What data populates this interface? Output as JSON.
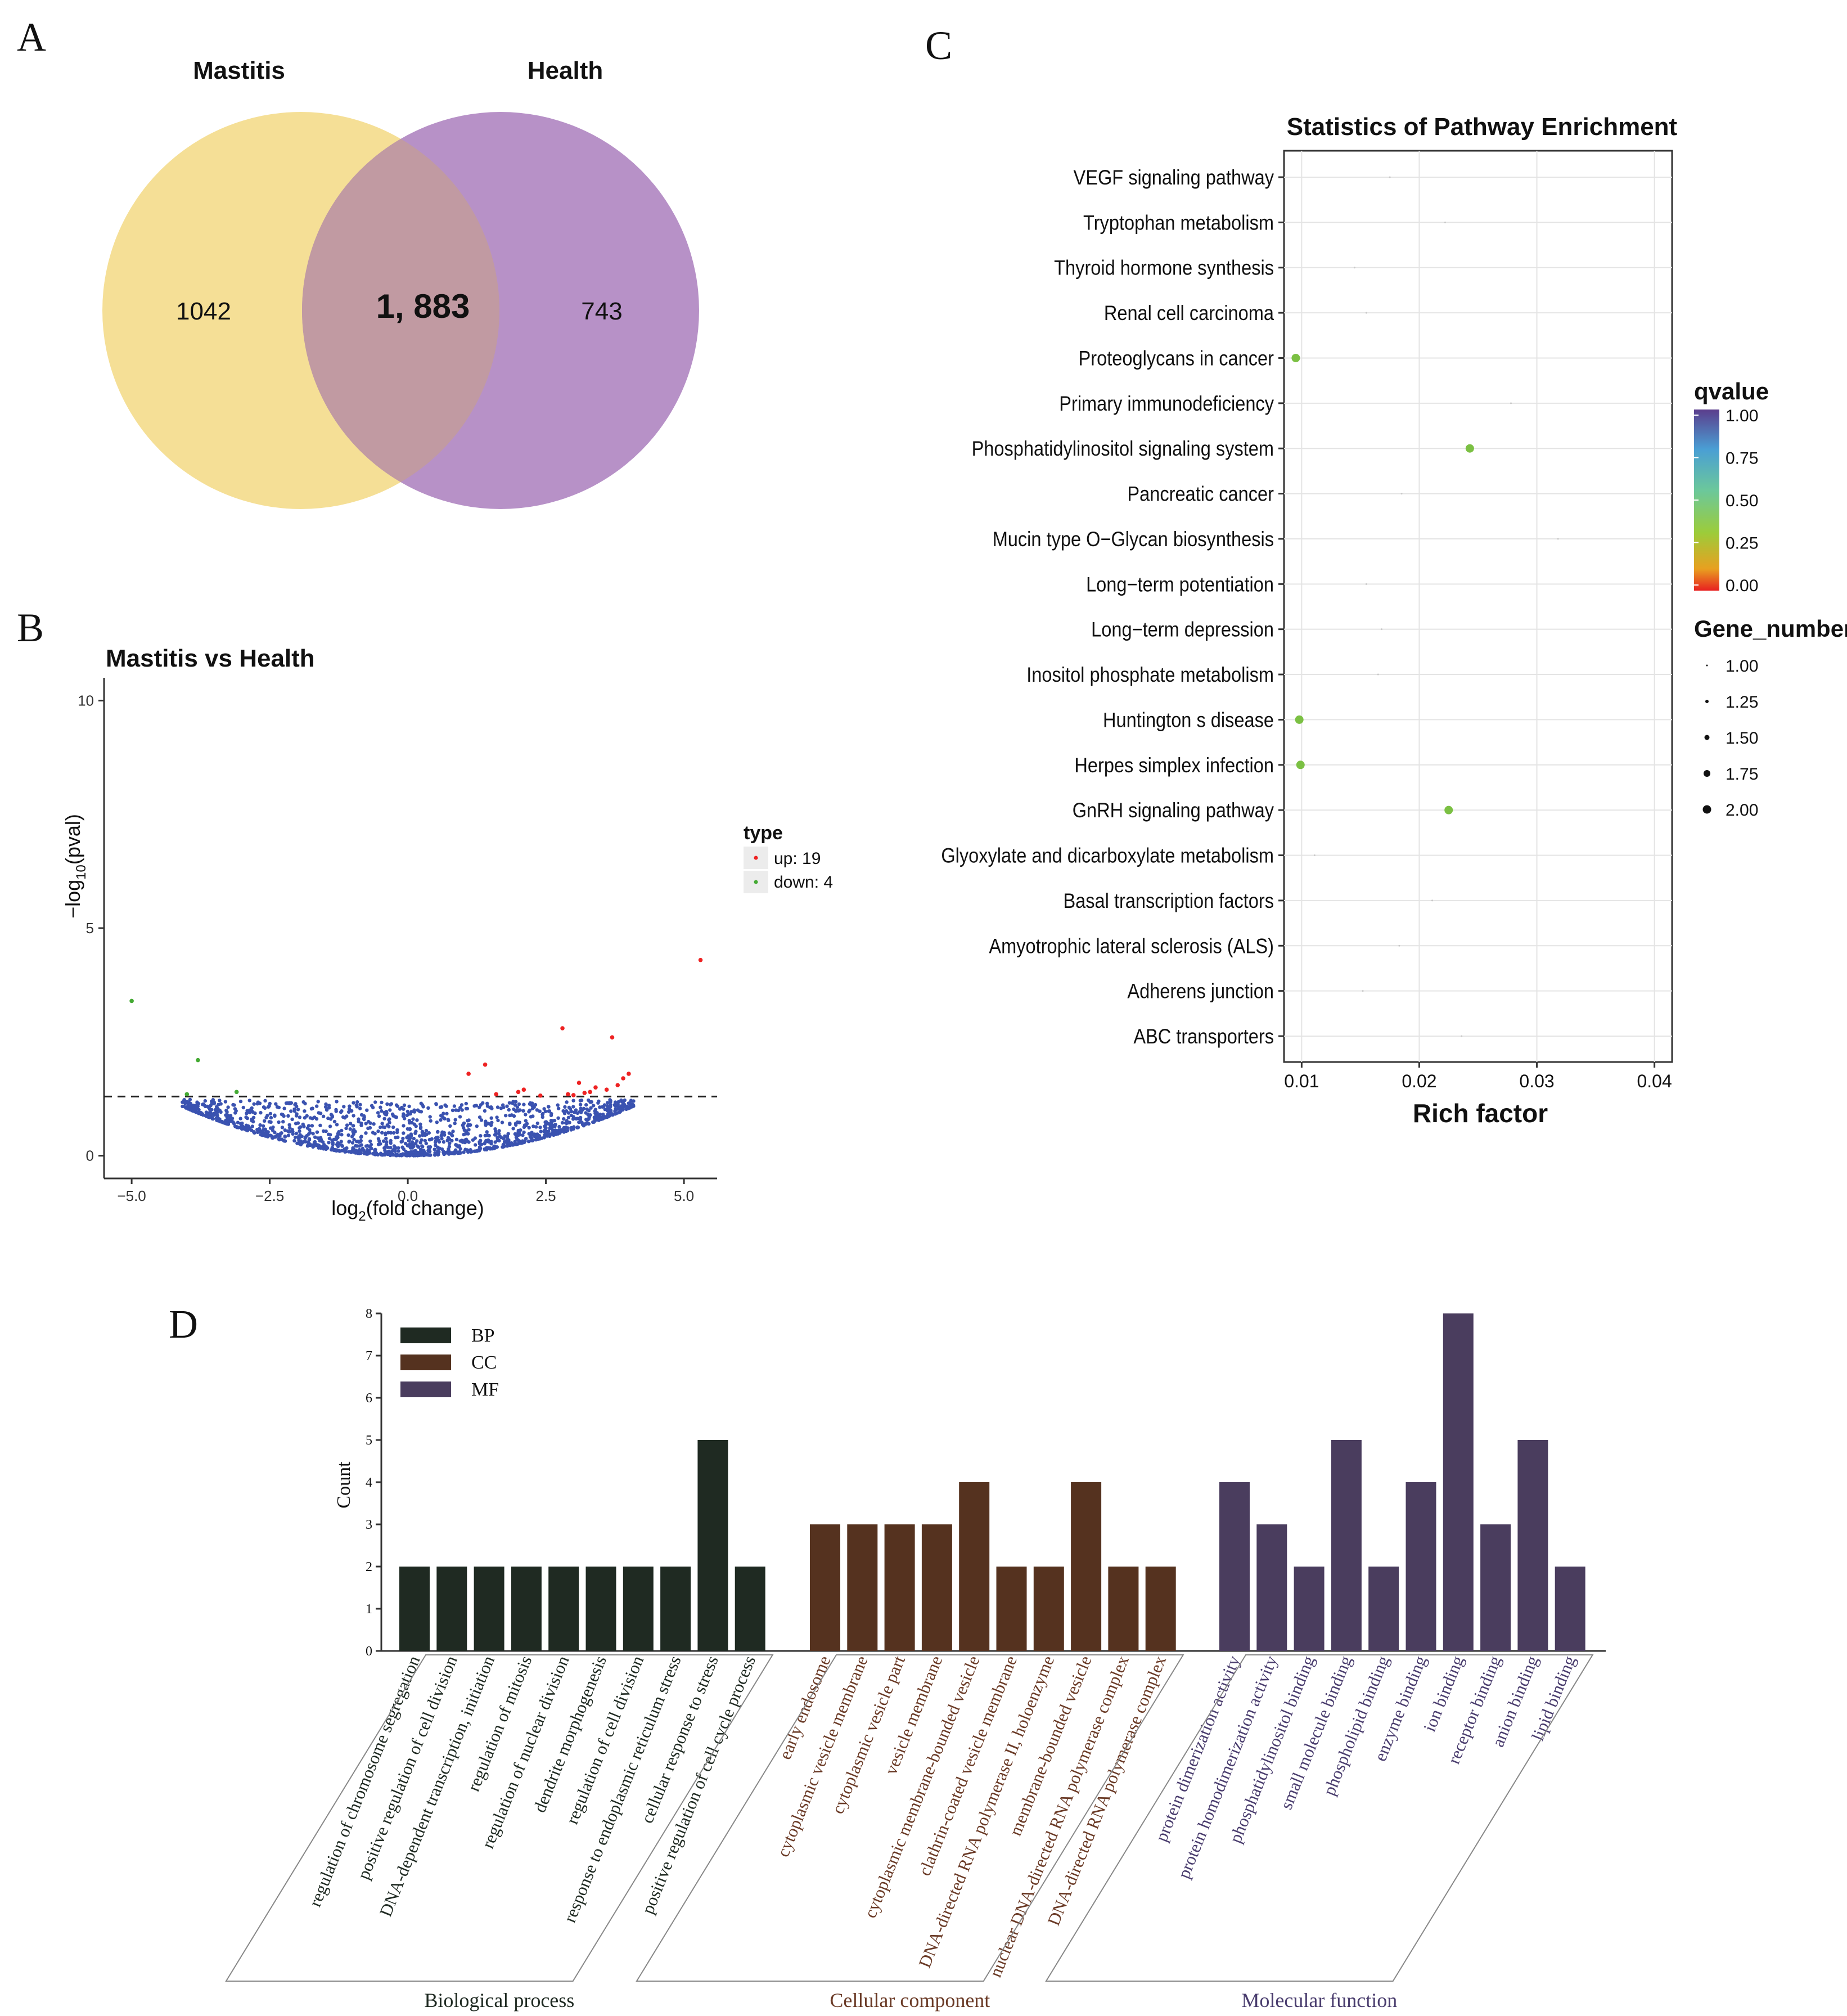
{
  "panel_labels": {
    "a": "A",
    "b": "B",
    "c": "C",
    "d": "D"
  },
  "chart_data": [
    {
      "panel": "A",
      "type": "venn",
      "sets": [
        {
          "name": "Mastitis",
          "only": "1042",
          "color": "#f5df96"
        },
        {
          "name": "Health",
          "only": "743",
          "color": "#b791c7"
        }
      ],
      "intersection": "1, 883",
      "overlap_color": "#c19aa2"
    },
    {
      "panel": "B",
      "type": "scatter",
      "title": "Mastitis vs Health",
      "xlabel": "log2(fold change)",
      "xlabel_main": "log",
      "xlabel_sub": "2",
      "xlabel_rest": "(fold change)",
      "ylabel": "-log10(pval)",
      "ylabel_main": "−log",
      "ylabel_sub": "10",
      "ylabel_rest": "(pval)",
      "xlim": [
        -5.5,
        5.6
      ],
      "ylim": [
        -0.5,
        10.5
      ],
      "xticks": [
        -5.0,
        -2.5,
        0.0,
        2.5,
        5.0
      ],
      "xtick_labels": [
        "−5.0",
        "−2.5",
        "0.0",
        "2.5",
        "5.0"
      ],
      "yticks": [
        0,
        5,
        10
      ],
      "ytick_labels": [
        "0",
        "5",
        "10"
      ],
      "threshold": 1.3,
      "legend": {
        "title": "type",
        "items": [
          {
            "label": "up: 19",
            "color": "#ee2222"
          },
          {
            "label": "down: 4",
            "color": "#44aa33"
          }
        ]
      },
      "up_points": [
        [
          5.3,
          4.3
        ],
        [
          2.8,
          2.8
        ],
        [
          3.7,
          2.6
        ],
        [
          1.4,
          2.0
        ],
        [
          1.1,
          1.8
        ],
        [
          4.0,
          1.8
        ],
        [
          3.9,
          1.7
        ],
        [
          3.1,
          1.6
        ],
        [
          3.4,
          1.5
        ],
        [
          3.8,
          1.55
        ],
        [
          2.1,
          1.45
        ],
        [
          2.0,
          1.4
        ],
        [
          3.3,
          1.4
        ],
        [
          3.6,
          1.45
        ],
        [
          3.2,
          1.38
        ],
        [
          2.9,
          1.35
        ],
        [
          1.6,
          1.35
        ],
        [
          2.4,
          1.32
        ],
        [
          3.0,
          1.33
        ]
      ],
      "down_points": [
        [
          -5.0,
          3.4
        ],
        [
          -3.8,
          2.1
        ],
        [
          -3.1,
          1.4
        ],
        [
          -4.0,
          1.35
        ]
      ],
      "ns_color": "#3a52b0",
      "ns_count": 1500
    },
    {
      "panel": "C",
      "type": "scatter",
      "title": "Statistics of Pathway Enrichment",
      "xlabel": "Rich factor",
      "xlim": [
        0.0085,
        0.0415
      ],
      "xticks": [
        0.01,
        0.02,
        0.03,
        0.04
      ],
      "xtick_labels": [
        "0.01",
        "0.02",
        "0.03",
        "0.04"
      ],
      "pathways": [
        "VEGF signaling pathway",
        "Tryptophan metabolism",
        "Thyroid hormone synthesis",
        "Renal cell carcinoma",
        "Proteoglycans in cancer",
        "Primary immunodeficiency",
        "Phosphatidylinositol signaling system",
        "Pancreatic cancer",
        "Mucin type O−Glycan biosynthesis",
        "Long−term potentiation",
        "Long−term depression",
        "Inositol phosphate metabolism",
        "Huntington s disease",
        "Herpes simplex infection",
        "GnRH signaling pathway",
        "Glyoxylate and dicarboxylate metabolism",
        "Basal transcription factors",
        "Amyotrophic lateral sclerosis (ALS)",
        "Adherens junction",
        "ABC transporters"
      ],
      "rich_factor": [
        0.0175,
        0.0222,
        0.0145,
        0.0155,
        0.0095,
        0.0278,
        0.0243,
        0.0185,
        0.0318,
        0.0155,
        0.0168,
        0.0165,
        0.0098,
        0.0099,
        0.0225,
        0.0111,
        0.0211,
        0.0183,
        0.0152,
        0.0236
      ],
      "gene_number": [
        1,
        1,
        1,
        1,
        2,
        1,
        2,
        1,
        1,
        1,
        1,
        1,
        2,
        2,
        2,
        1,
        1,
        1,
        1,
        1
      ],
      "qvalue": [
        0.25,
        0.25,
        0.25,
        0.25,
        0.25,
        0.25,
        0.25,
        0.25,
        0.25,
        0.25,
        0.25,
        0.25,
        0.25,
        0.25,
        0.25,
        0.25,
        0.25,
        0.25,
        0.25,
        0.25
      ],
      "color_legend": {
        "title": "qvalue",
        "ticks": [
          "1.00",
          "0.75",
          "0.50",
          "0.25",
          "0.00"
        ],
        "colors": [
          "#5b3d8c",
          "#4a9fd4",
          "#6cc89a",
          "#9ccc3a",
          "#e8a020",
          "#e82020"
        ]
      },
      "size_legend": {
        "title": "Gene_number",
        "values": [
          1.0,
          1.25,
          1.5,
          1.75,
          2.0
        ],
        "labels": [
          "1.00",
          "1.25",
          "1.50",
          "1.75",
          "2.00"
        ]
      }
    },
    {
      "panel": "D",
      "type": "bar",
      "ylabel": "Count",
      "ylim": [
        0,
        8
      ],
      "yticks": [
        0,
        1,
        2,
        3,
        4,
        5,
        6,
        7,
        8
      ],
      "ytick_labels": [
        "0",
        "1",
        "2",
        "3",
        "4",
        "5",
        "6",
        "7",
        "8"
      ],
      "legend": [
        {
          "label": "BP",
          "color": "#1f2a22"
        },
        {
          "label": "CC",
          "color": "#55321f"
        },
        {
          "label": "MF",
          "color": "#4a3d5e"
        }
      ],
      "groups": [
        {
          "name": "Biological process",
          "color": "#1f2a22",
          "label_color": "#1f2a22",
          "categories": [
            "regulation of chromosome segregation",
            "positive regulation of cell division",
            "DNA-dependent transcription, initiation",
            "regulation of mitosis",
            "regulation of nuclear division",
            "dendrite morphogenesis",
            "regulation of cell division",
            "response to endoplasmic reticulum stress",
            "cellular response to stress",
            "positive regulation of cell cycle process"
          ],
          "values": [
            2,
            2,
            2,
            2,
            2,
            2,
            2,
            2,
            5,
            2
          ]
        },
        {
          "name": "Cellular component",
          "color": "#55321f",
          "label_color": "#6a3a26",
          "categories": [
            "early endosome",
            "cytoplasmic vesicle membrane",
            "cytoplasmic vesicle part",
            "vesicle membrane",
            "cytoplasmic membrane-bounded vesicle",
            "clathrin-coated vesicle membrane",
            "DNA-directed RNA polymerase II, holoenzyme",
            "membrane-bounded vesicle",
            "nuclear DNA-directed RNA polymerase complex",
            "DNA-directed RNA polymerase complex"
          ],
          "values": [
            3,
            3,
            3,
            3,
            4,
            2,
            2,
            4,
            2,
            2
          ]
        },
        {
          "name": "Molecular function",
          "color": "#4a3d5e",
          "label_color": "#4a3d6e",
          "categories": [
            "protein dimerization activity",
            "protein homodimerization activity",
            "phosphatidylinositol binding",
            "small molecule binding",
            "phospholipid binding",
            "enzyme binding",
            "ion binding",
            "receptor binding",
            "anion binding",
            "lipid binding"
          ],
          "values": [
            4,
            3,
            2,
            5,
            2,
            4,
            8,
            3,
            5,
            2
          ]
        }
      ]
    }
  ]
}
